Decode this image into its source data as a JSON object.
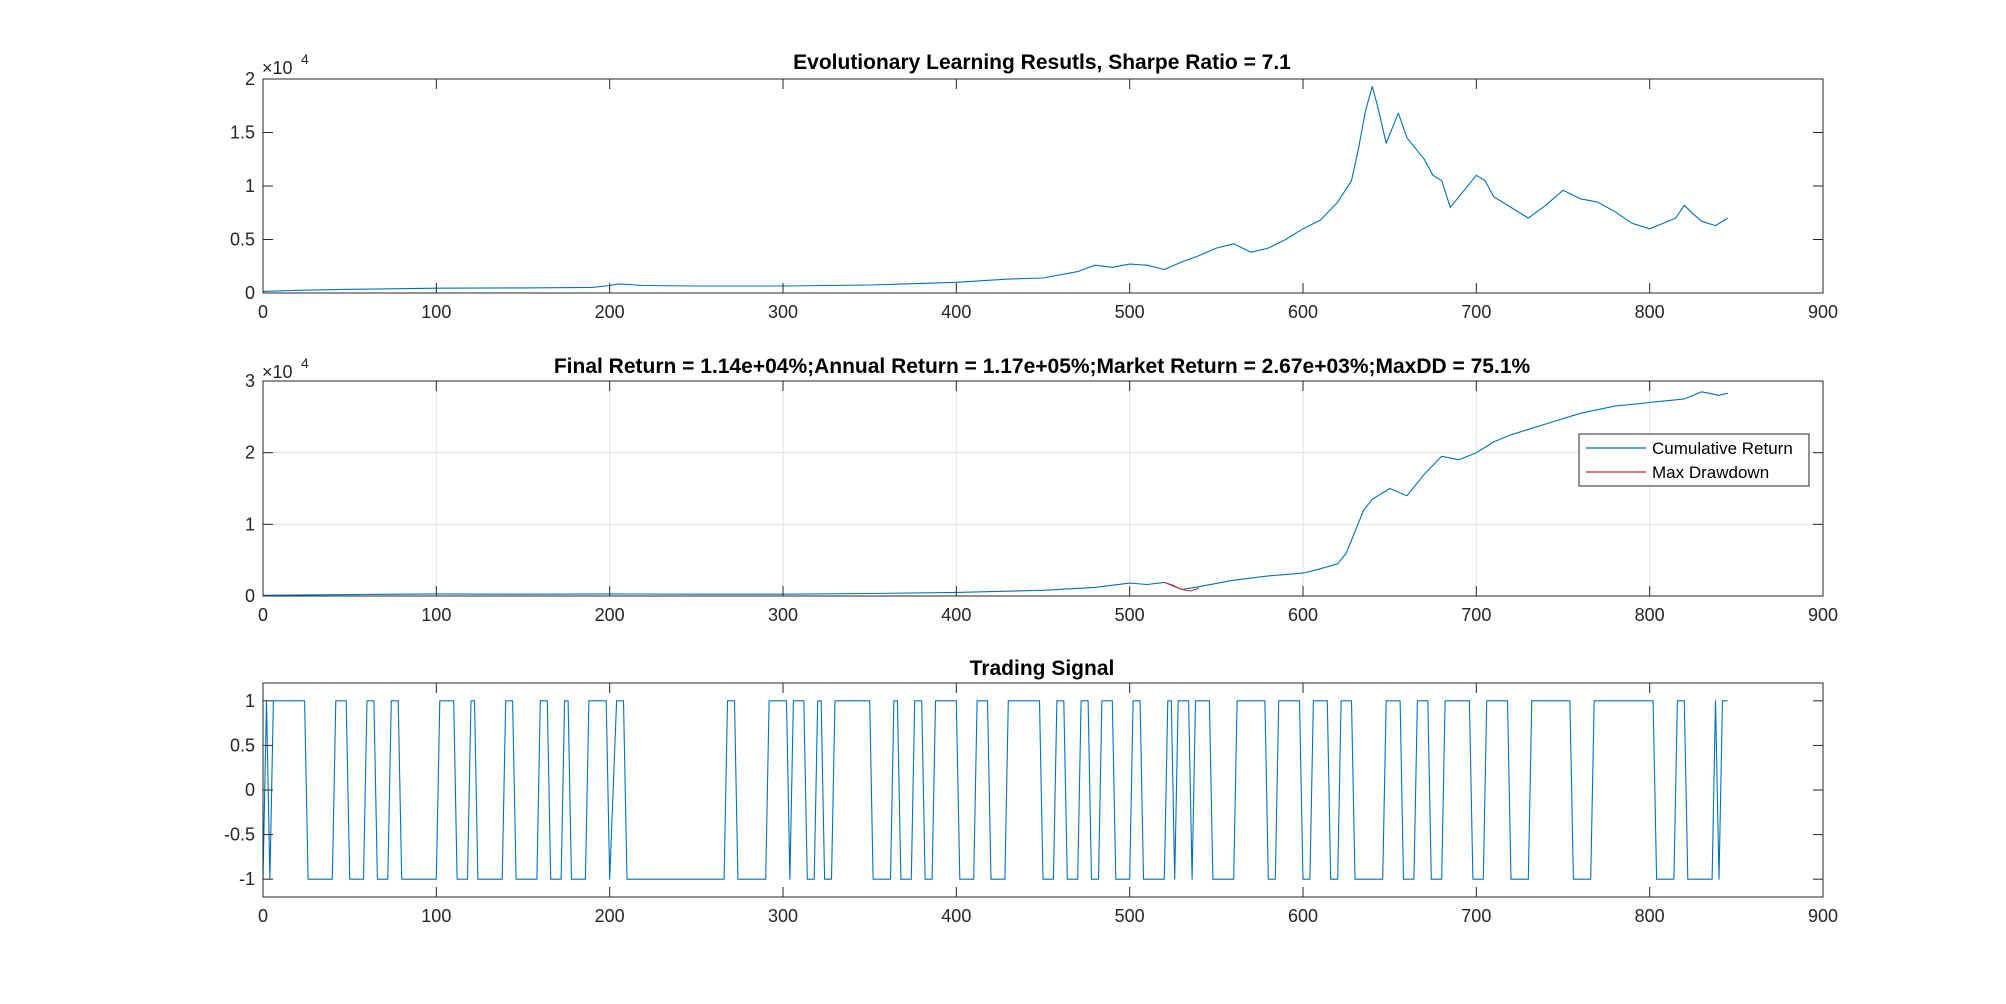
{
  "figure": {
    "background": "#ffffff"
  },
  "chart_data": [
    {
      "id": "top",
      "type": "line",
      "title": "Evolutionary Learning Resutls, Sharpe Ratio = 7.1",
      "xlabel": "",
      "ylabel": "",
      "xlim": [
        0,
        900
      ],
      "ylim": [
        0,
        20000
      ],
      "x_ticks": [
        "0",
        "100",
        "200",
        "300",
        "400",
        "500",
        "600",
        "700",
        "800",
        "900"
      ],
      "y_ticks": [
        "0",
        "0.5",
        "1",
        "1.5",
        "2"
      ],
      "y_exponent_base": "×10",
      "y_exponent_power": "4",
      "grid": false,
      "series": [
        {
          "color": "#0072bd",
          "points": [
            [
              0,
              150
            ],
            [
              20,
              250
            ],
            [
              50,
              350
            ],
            [
              100,
              450
            ],
            [
              150,
              480
            ],
            [
              190,
              520
            ],
            [
              200,
              700
            ],
            [
              205,
              850
            ],
            [
              220,
              700
            ],
            [
              250,
              650
            ],
            [
              300,
              650
            ],
            [
              350,
              750
            ],
            [
              400,
              1000
            ],
            [
              430,
              1300
            ],
            [
              450,
              1400
            ],
            [
              470,
              2000
            ],
            [
              480,
              2600
            ],
            [
              490,
              2400
            ],
            [
              500,
              2700
            ],
            [
              510,
              2600
            ],
            [
              520,
              2200
            ],
            [
              530,
              2900
            ],
            [
              540,
              3500
            ],
            [
              550,
              4200
            ],
            [
              560,
              4600
            ],
            [
              570,
              3800
            ],
            [
              580,
              4200
            ],
            [
              590,
              5000
            ],
            [
              600,
              6000
            ],
            [
              610,
              6800
            ],
            [
              620,
              8500
            ],
            [
              628,
              10500
            ],
            [
              632,
              13500
            ],
            [
              636,
              17000
            ],
            [
              640,
              19300
            ],
            [
              643,
              17500
            ],
            [
              648,
              14000
            ],
            [
              655,
              16800
            ],
            [
              660,
              14500
            ],
            [
              670,
              12500
            ],
            [
              675,
              11000
            ],
            [
              680,
              10500
            ],
            [
              685,
              8000
            ],
            [
              690,
              9000
            ],
            [
              700,
              11000
            ],
            [
              705,
              10500
            ],
            [
              710,
              9000
            ],
            [
              720,
              8000
            ],
            [
              730,
              7000
            ],
            [
              740,
              8200
            ],
            [
              750,
              9600
            ],
            [
              760,
              8800
            ],
            [
              770,
              8500
            ],
            [
              780,
              7600
            ],
            [
              790,
              6500
            ],
            [
              800,
              6000
            ],
            [
              815,
              7000
            ],
            [
              820,
              8200
            ],
            [
              825,
              7400
            ],
            [
              830,
              6700
            ],
            [
              838,
              6300
            ],
            [
              845,
              7000
            ]
          ]
        }
      ]
    },
    {
      "id": "middle",
      "type": "line",
      "title": "Final Return = 1.14e+04%;Annual Return = 1.17e+05%;Market Return = 2.67e+03%;MaxDD = 75.1%",
      "xlabel": "",
      "ylabel": "",
      "xlim": [
        0,
        900
      ],
      "ylim": [
        0,
        30000
      ],
      "x_ticks": [
        "0",
        "100",
        "200",
        "300",
        "400",
        "500",
        "600",
        "700",
        "800",
        "900"
      ],
      "y_ticks": [
        "0",
        "1",
        "2",
        "3"
      ],
      "y_exponent_base": "×10",
      "y_exponent_power": "4",
      "grid": true,
      "legend_position": "right",
      "series": [
        {
          "name": "Cumulative Return",
          "color": "#0072bd",
          "points": [
            [
              0,
              100
            ],
            [
              50,
              200
            ],
            [
              100,
              300
            ],
            [
              150,
              250
            ],
            [
              200,
              300
            ],
            [
              250,
              250
            ],
            [
              300,
              250
            ],
            [
              350,
              350
            ],
            [
              400,
              500
            ],
            [
              450,
              800
            ],
            [
              480,
              1200
            ],
            [
              500,
              1800
            ],
            [
              510,
              1600
            ],
            [
              520,
              1900
            ],
            [
              530,
              900
            ],
            [
              540,
              1300
            ],
            [
              560,
              2200
            ],
            [
              580,
              2800
            ],
            [
              600,
              3200
            ],
            [
              610,
              3800
            ],
            [
              620,
              4500
            ],
            [
              625,
              6000
            ],
            [
              630,
              9000
            ],
            [
              635,
              12000
            ],
            [
              640,
              13500
            ],
            [
              650,
              15000
            ],
            [
              660,
              14000
            ],
            [
              670,
              17000
            ],
            [
              680,
              19500
            ],
            [
              690,
              19000
            ],
            [
              700,
              20000
            ],
            [
              710,
              21500
            ],
            [
              720,
              22500
            ],
            [
              740,
              24000
            ],
            [
              760,
              25500
            ],
            [
              780,
              26500
            ],
            [
              800,
              27000
            ],
            [
              820,
              27500
            ],
            [
              830,
              28500
            ],
            [
              840,
              28000
            ],
            [
              845,
              28300
            ]
          ]
        },
        {
          "name": "Max Drawdown",
          "color": "#d62728",
          "points": [
            [
              520,
              1900
            ],
            [
              525,
              1500
            ],
            [
              530,
              900
            ],
            [
              535,
              700
            ],
            [
              540,
              1100
            ]
          ]
        }
      ]
    },
    {
      "id": "bottom",
      "type": "line",
      "title": "Trading Signal",
      "xlabel": "",
      "ylabel": "",
      "xlim": [
        0,
        900
      ],
      "ylim": [
        -1.2,
        1.2
      ],
      "x_ticks": [
        "0",
        "100",
        "200",
        "300",
        "400",
        "500",
        "600",
        "700",
        "800",
        "900"
      ],
      "y_ticks": [
        "-1",
        "-0.5",
        "0",
        "0.5",
        "1"
      ],
      "grid": false,
      "series": [
        {
          "color": "#0072bd",
          "points": [
            [
              0,
              -1
            ],
            [
              2,
              1
            ],
            [
              4,
              -1
            ],
            [
              6,
              1
            ],
            [
              24,
              1
            ],
            [
              26,
              -1
            ],
            [
              40,
              -1
            ],
            [
              42,
              1
            ],
            [
              48,
              1
            ],
            [
              50,
              -1
            ],
            [
              58,
              -1
            ],
            [
              60,
              1
            ],
            [
              64,
              1
            ],
            [
              66,
              -1
            ],
            [
              72,
              -1
            ],
            [
              74,
              1
            ],
            [
              78,
              1
            ],
            [
              80,
              -1
            ],
            [
              100,
              -1
            ],
            [
              102,
              1
            ],
            [
              110,
              1
            ],
            [
              112,
              -1
            ],
            [
              118,
              -1
            ],
            [
              120,
              1
            ],
            [
              122,
              1
            ],
            [
              124,
              -1
            ],
            [
              138,
              -1
            ],
            [
              140,
              1
            ],
            [
              144,
              1
            ],
            [
              146,
              -1
            ],
            [
              158,
              -1
            ],
            [
              160,
              1
            ],
            [
              164,
              1
            ],
            [
              166,
              -1
            ],
            [
              172,
              -1
            ],
            [
              174,
              1
            ],
            [
              176,
              1
            ],
            [
              178,
              -1
            ],
            [
              186,
              -1
            ],
            [
              188,
              1
            ],
            [
              198,
              1
            ],
            [
              200,
              -1
            ],
            [
              204,
              1
            ],
            [
              208,
              1
            ],
            [
              210,
              -1
            ],
            [
              266,
              -1
            ],
            [
              268,
              1
            ],
            [
              272,
              1
            ],
            [
              274,
              -1
            ],
            [
              290,
              -1
            ],
            [
              292,
              1
            ],
            [
              302,
              1
            ],
            [
              304,
              -1
            ],
            [
              306,
              1
            ],
            [
              312,
              1
            ],
            [
              314,
              -1
            ],
            [
              318,
              -1
            ],
            [
              320,
              1
            ],
            [
              322,
              1
            ],
            [
              324,
              -1
            ],
            [
              328,
              -1
            ],
            [
              330,
              1
            ],
            [
              350,
              1
            ],
            [
              352,
              -1
            ],
            [
              362,
              -1
            ],
            [
              364,
              1
            ],
            [
              366,
              1
            ],
            [
              368,
              -1
            ],
            [
              374,
              -1
            ],
            [
              376,
              1
            ],
            [
              380,
              1
            ],
            [
              382,
              -1
            ],
            [
              386,
              -1
            ],
            [
              388,
              1
            ],
            [
              400,
              1
            ],
            [
              402,
              -1
            ],
            [
              410,
              -1
            ],
            [
              412,
              1
            ],
            [
              418,
              1
            ],
            [
              420,
              -1
            ],
            [
              428,
              -1
            ],
            [
              430,
              1
            ],
            [
              448,
              1
            ],
            [
              450,
              -1
            ],
            [
              456,
              -1
            ],
            [
              458,
              1
            ],
            [
              462,
              1
            ],
            [
              464,
              -1
            ],
            [
              470,
              -1
            ],
            [
              472,
              1
            ],
            [
              476,
              1
            ],
            [
              478,
              -1
            ],
            [
              482,
              -1
            ],
            [
              484,
              1
            ],
            [
              490,
              1
            ],
            [
              492,
              -1
            ],
            [
              500,
              -1
            ],
            [
              502,
              1
            ],
            [
              506,
              1
            ],
            [
              508,
              -1
            ],
            [
              520,
              -1
            ],
            [
              522,
              1
            ],
            [
              524,
              1
            ],
            [
              526,
              -1
            ],
            [
              528,
              1
            ],
            [
              534,
              1
            ],
            [
              536,
              -1
            ],
            [
              538,
              1
            ],
            [
              546,
              1
            ],
            [
              548,
              -1
            ],
            [
              560,
              -1
            ],
            [
              562,
              1
            ],
            [
              578,
              1
            ],
            [
              580,
              -1
            ],
            [
              584,
              -1
            ],
            [
              586,
              1
            ],
            [
              598,
              1
            ],
            [
              600,
              -1
            ],
            [
              604,
              -1
            ],
            [
              606,
              1
            ],
            [
              614,
              1
            ],
            [
              616,
              -1
            ],
            [
              620,
              -1
            ],
            [
              622,
              1
            ],
            [
              628,
              1
            ],
            [
              630,
              -1
            ],
            [
              646,
              -1
            ],
            [
              648,
              1
            ],
            [
              656,
              1
            ],
            [
              658,
              -1
            ],
            [
              664,
              -1
            ],
            [
              666,
              1
            ],
            [
              672,
              1
            ],
            [
              674,
              -1
            ],
            [
              680,
              -1
            ],
            [
              682,
              1
            ],
            [
              696,
              1
            ],
            [
              698,
              -1
            ],
            [
              704,
              -1
            ],
            [
              706,
              1
            ],
            [
              718,
              1
            ],
            [
              720,
              -1
            ],
            [
              730,
              -1
            ],
            [
              732,
              1
            ],
            [
              754,
              1
            ],
            [
              756,
              -1
            ],
            [
              766,
              -1
            ],
            [
              768,
              1
            ],
            [
              802,
              1
            ],
            [
              804,
              -1
            ],
            [
              814,
              -1
            ],
            [
              816,
              1
            ],
            [
              820,
              1
            ],
            [
              822,
              -1
            ],
            [
              836,
              -1
            ],
            [
              838,
              1
            ],
            [
              840,
              -1
            ],
            [
              842,
              1
            ],
            [
              845,
              1
            ]
          ]
        }
      ]
    }
  ]
}
